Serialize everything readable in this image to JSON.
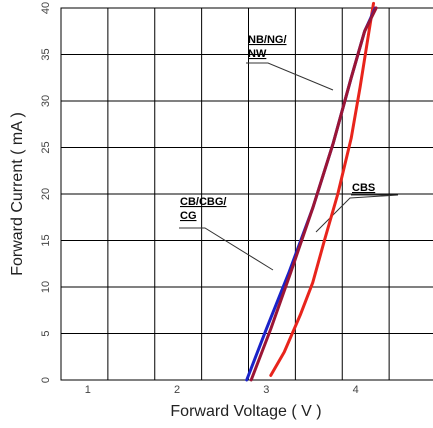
{
  "chart_data": {
    "type": "line",
    "xlabel": "Forward Voltage ( V )",
    "ylabel": "Forward Current ( mA )",
    "xlim": [
      0.7,
      4.9
    ],
    "ylim": [
      0,
      40
    ],
    "xticks": [
      1,
      2,
      3,
      4
    ],
    "yticks": [
      0,
      5,
      10,
      15,
      20,
      25,
      30,
      35,
      40
    ],
    "grid": true,
    "series": [
      {
        "label_lines": [
          "CB/CBG/",
          "CG"
        ],
        "color": "#1a22c8",
        "points": [
          [
            2.78,
            0
          ],
          [
            3.0,
            5.5
          ],
          [
            3.25,
            11.5
          ],
          [
            3.52,
            18.5
          ],
          [
            3.75,
            25.5
          ],
          [
            3.95,
            32.5
          ],
          [
            4.1,
            37.5
          ],
          [
            4.22,
            40.0
          ]
        ]
      },
      {
        "label_lines": [
          "NB/NG/",
          "NW"
        ],
        "color": "#9b1535",
        "points": [
          [
            2.83,
            0
          ],
          [
            3.05,
            5.5
          ],
          [
            3.27,
            11.5
          ],
          [
            3.52,
            18.5
          ],
          [
            3.75,
            25.5
          ],
          [
            3.95,
            32.5
          ],
          [
            4.1,
            37.5
          ],
          [
            4.23,
            40.0
          ]
        ]
      },
      {
        "label_lines": [
          "CBS"
        ],
        "color": "#e8241c",
        "points": [
          [
            3.05,
            0.5
          ],
          [
            3.2,
            3.0
          ],
          [
            3.38,
            7.0
          ],
          [
            3.52,
            10.5
          ],
          [
            3.65,
            15.0
          ],
          [
            3.8,
            20.0
          ],
          [
            3.95,
            26.0
          ],
          [
            4.05,
            31.5
          ],
          [
            4.15,
            37.5
          ],
          [
            4.2,
            40.5
          ]
        ]
      }
    ]
  }
}
